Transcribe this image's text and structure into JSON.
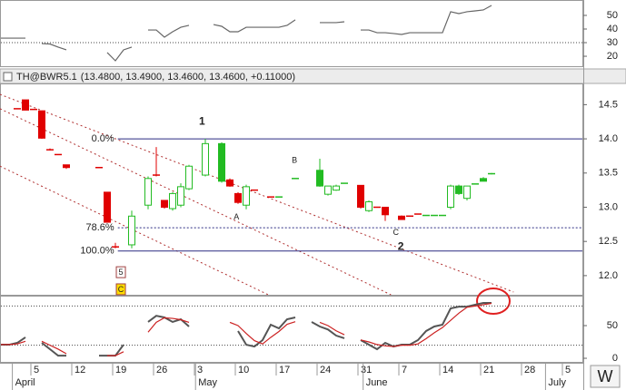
{
  "button": "W",
  "chart_data": [
    {
      "type": "line",
      "xlim": [
        0,
        71
      ],
      "ylim": [
        12.7,
        61.3
      ],
      "yticks": [
        20,
        30,
        40,
        50
      ],
      "hlines": [
        30
      ],
      "series": [
        {
          "color": "#666666",
          "values": [
            33.3,
            33.3,
            33.3,
            33.3,
            null,
            29.3,
            29,
            26.7,
            24.7,
            null,
            null,
            null,
            null,
            22.7,
            16.7,
            24.7,
            26.7,
            null,
            39.3,
            39.3,
            34,
            38,
            41.3,
            42.7,
            null,
            null,
            43.3,
            42,
            38,
            38,
            41.3,
            41.3,
            41.3,
            41.3,
            41.3,
            42.7,
            46.7,
            null,
            null,
            44.7,
            44.7,
            44.7,
            45.3,
            null,
            39.3,
            39.3,
            37.3,
            37.3,
            36.7,
            36,
            37.3,
            37.3,
            37.3,
            37.3,
            37.3,
            52.7,
            51.3,
            52.7,
            53.3,
            54,
            57.3
          ]
        }
      ]
    },
    {
      "type": "candlestick",
      "xlim": [
        0,
        71
      ],
      "ylim": [
        11.72,
        14.81
      ],
      "header": {
        "symbol": "TH@BWR5.1",
        "quote": "(13.4800, 13.4900, 13.4600, 13.4600, +0.11000)"
      },
      "yticks": [
        {
          "value": 12.0,
          "label": "12.0"
        },
        {
          "value": 12.5,
          "label": "12.5"
        },
        {
          "value": 13.0,
          "label": "13.0"
        },
        {
          "value": 13.5,
          "label": "13.5"
        },
        {
          "value": 14.0,
          "label": "14.0"
        },
        {
          "value": 14.5,
          "label": "14.5"
        }
      ],
      "candles": {
        "x": [
          2,
          3,
          4,
          5,
          6,
          7,
          8,
          12,
          13,
          14,
          16,
          18,
          19,
          20,
          21,
          22,
          23,
          25,
          27,
          28,
          29,
          30,
          31,
          33,
          34,
          36,
          39,
          40,
          41,
          42,
          44,
          45,
          46,
          47,
          49,
          50,
          51,
          52,
          53,
          54,
          55,
          56,
          57,
          58,
          59,
          60
        ],
        "open": [
          14.44,
          14.57,
          14.43,
          14.41,
          13.84,
          13.77,
          13.62,
          13.58,
          13.22,
          12.42,
          12.45,
          13.03,
          13.47,
          13.1,
          12.98,
          13.03,
          13.27,
          13.47,
          13.93,
          13.4,
          13.2,
          13.03,
          13.25,
          13.15,
          13.15,
          13.42,
          13.54,
          13.19,
          13.25,
          13.35,
          13.32,
          12.95,
          13.0,
          13.0,
          12.87,
          12.87,
          12.9,
          12.88,
          12.88,
          12.88,
          13.0,
          13.31,
          13.13,
          13.34,
          13.42,
          13.49
        ],
        "high": [
          14.44,
          14.57,
          14.43,
          14.41,
          13.86,
          13.77,
          13.62,
          13.58,
          13.22,
          12.48,
          12.95,
          13.45,
          13.88,
          13.1,
          13.22,
          13.35,
          13.62,
          14.0,
          13.95,
          13.42,
          13.22,
          13.33,
          13.25,
          13.15,
          13.15,
          13.42,
          13.71,
          13.31,
          13.33,
          13.35,
          13.32,
          13.1,
          13.0,
          13.0,
          12.88,
          12.87,
          12.9,
          12.88,
          12.88,
          12.88,
          13.33,
          13.33,
          13.31,
          13.34,
          13.44,
          13.5
        ],
        "low": [
          14.44,
          14.42,
          14.43,
          14.0,
          13.83,
          13.77,
          13.56,
          13.58,
          12.78,
          12.4,
          12.4,
          12.97,
          13.45,
          12.98,
          12.95,
          13.0,
          13.25,
          13.45,
          13.36,
          13.3,
          13.05,
          12.97,
          13.25,
          13.15,
          13.15,
          13.42,
          13.3,
          13.17,
          13.24,
          13.35,
          12.98,
          12.93,
          13.0,
          12.8,
          12.82,
          12.87,
          12.9,
          12.88,
          12.88,
          12.88,
          12.97,
          13.18,
          13.1,
          13.34,
          13.38,
          13.48
        ],
        "close": [
          14.44,
          14.42,
          14.43,
          14.01,
          13.84,
          13.77,
          13.58,
          13.58,
          12.78,
          12.42,
          12.87,
          13.42,
          13.47,
          13.0,
          13.2,
          13.3,
          13.6,
          13.93,
          13.38,
          13.31,
          13.07,
          13.3,
          13.25,
          13.15,
          13.15,
          13.42,
          13.31,
          13.31,
          13.31,
          13.35,
          13.0,
          13.08,
          13.0,
          12.89,
          12.82,
          12.87,
          12.9,
          12.88,
          12.88,
          12.88,
          13.31,
          13.2,
          13.31,
          13.34,
          13.38,
          13.49
        ],
        "colors": [
          "#e00000",
          "#e00000",
          "#e00000",
          "#e00000",
          "#e00000",
          "#e00000",
          "#e00000",
          "#e00000",
          "#e00000",
          "#e00000",
          "#22bb22",
          "#22bb22",
          "#e00000",
          "#e00000",
          "#22bb22",
          "#22bb22",
          "#22bb22",
          "#22bb22",
          "#22bb22",
          "#e00000",
          "#e00000",
          "#22bb22",
          "#e00000",
          "#e00000",
          "#22bb22",
          "#22bb22",
          "#22bb22",
          "#22bb22",
          "#22bb22",
          "#22bb22",
          "#e00000",
          "#22bb22",
          "#e00000",
          "#e00000",
          "#e00000",
          "#e00000",
          "#e00000",
          "#22bb22",
          "#22bb22",
          "#22bb22",
          "#22bb22",
          "#22bb22",
          "#22bb22",
          "#22bb22",
          "#22bb22",
          "#22bb22"
        ]
      },
      "fib_levels": [
        {
          "label": "0.0%",
          "value": 14.0,
          "x_start": 14.3,
          "dashed": false
        },
        {
          "label": "78.6%",
          "value": 12.7,
          "x_start": 14.3,
          "dashed": true
        },
        {
          "label": "100.0%",
          "value": 12.36,
          "x_start": 14.3,
          "dashed": false
        }
      ],
      "trendlines": [
        {
          "x": [
            -0.11,
            62.7
          ],
          "y": [
            14.65,
            11.76
          ]
        },
        {
          "x": [
            -0.11,
            47.7
          ],
          "y": [
            14.44,
            11.72
          ]
        },
        {
          "x": [
            -0.11,
            32.7
          ],
          "y": [
            13.6,
            11.72
          ]
        }
      ],
      "wave_labels": [
        {
          "text": "1",
          "x": 24.6,
          "y": 14.25,
          "color": "#1010b0"
        },
        {
          "text": "2",
          "x": 48.9,
          "y": 12.42,
          "color": "#1010b0"
        },
        {
          "text": "A",
          "x": 28.8,
          "y": 12.85,
          "color": "#802020"
        },
        {
          "text": "B",
          "x": 35.9,
          "y": 13.68,
          "color": "#802020"
        },
        {
          "text": "C",
          "x": 48.3,
          "y": 12.63,
          "color": "#802020"
        }
      ],
      "boxed_labels": [
        {
          "text": "5",
          "x": 14.67,
          "y": 12.05,
          "fill": "#ffffff"
        },
        {
          "text": "C",
          "x": 14.67,
          "y": 11.8,
          "fill": "#ffdd00"
        }
      ]
    },
    {
      "type": "line",
      "xlim": [
        0,
        71
      ],
      "ylim": [
        -6.9,
        94.4
      ],
      "yticks": [
        0,
        50
      ],
      "hlines": [
        80,
        20
      ],
      "xticks": [
        {
          "value": 4,
          "label": "5"
        },
        {
          "value": 9,
          "label": "12"
        },
        {
          "value": 14,
          "label": "19"
        },
        {
          "value": 19,
          "label": "26"
        },
        {
          "value": 24,
          "label": "3"
        },
        {
          "value": 29,
          "label": "10"
        },
        {
          "value": 34,
          "label": "17"
        },
        {
          "value": 39,
          "label": "24"
        },
        {
          "value": 44,
          "label": "31"
        },
        {
          "value": 49,
          "label": "7"
        },
        {
          "value": 54,
          "label": "14"
        },
        {
          "value": 59,
          "label": "21"
        },
        {
          "value": 64,
          "label": "28"
        },
        {
          "value": 69,
          "label": "5"
        }
      ],
      "month_ticks": [
        {
          "value": 1.4,
          "label": "April"
        },
        {
          "value": 23.8,
          "label": "May"
        },
        {
          "value": 44.3,
          "label": "June"
        },
        {
          "value": 66.6,
          "label": "July"
        }
      ],
      "series": [
        {
          "color": "#555555",
          "values": [
            20.8,
            20.8,
            23.6,
            32,
            null,
            23.6,
            13.9,
            4,
            4,
            null,
            null,
            null,
            4,
            4,
            4,
            20.8,
            null,
            null,
            55.6,
            65,
            62.5,
            55.6,
            59.7,
            48.6,
            null,
            null,
            null,
            null,
            null,
            41.7,
            20.8,
            18,
            27.8,
            51.4,
            45.8,
            59.7,
            62.5,
            null,
            55.6,
            48.6,
            44,
            34.7,
            30.6,
            null,
            27.8,
            20.8,
            13.9,
            23.6,
            18,
            20.8,
            20.8,
            27.8,
            41.7,
            48.6,
            51.4,
            76.4,
            79,
            79,
            82,
            84.7,
            84.7
          ]
        },
        {
          "color": "#cc2222",
          "values": [
            21,
            21,
            22,
            26,
            null,
            26,
            20,
            14,
            7,
            null,
            null,
            null,
            null,
            4,
            4,
            10,
            null,
            null,
            40,
            55,
            62,
            61,
            59,
            55,
            null,
            null,
            null,
            null,
            55,
            50,
            38,
            27,
            22,
            32,
            41,
            52,
            56,
            null,
            null,
            55,
            50,
            42,
            36,
            null,
            28,
            25,
            21,
            19,
            18,
            20,
            20,
            22,
            30,
            39,
            47,
            58,
            69,
            78,
            80,
            82,
            84
          ]
        }
      ]
    }
  ]
}
